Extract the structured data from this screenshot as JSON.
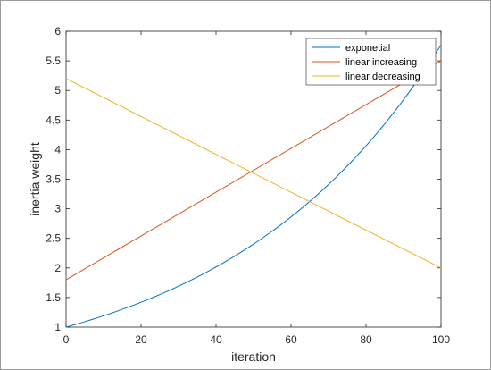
{
  "chart_data": {
    "type": "line",
    "title": "",
    "xlabel": "iteration",
    "ylabel": "inertia weight",
    "xlim": [
      0,
      100
    ],
    "ylim": [
      1,
      6
    ],
    "xticks": [
      0,
      20,
      40,
      60,
      80,
      100
    ],
    "yticks": [
      1,
      1.5,
      2,
      2.5,
      3,
      3.5,
      4,
      4.5,
      5,
      5.5,
      6
    ],
    "ytick_labels": [
      "1",
      "1.5",
      "2",
      "2.5",
      "3",
      "3.5",
      "4",
      "4.5",
      "5",
      "5.5",
      "6"
    ],
    "grid": false,
    "legend_position": "top-right",
    "series": [
      {
        "name": "exponetial",
        "color": "#0072BD",
        "x": [
          0,
          10,
          20,
          30,
          40,
          50,
          60,
          65,
          70,
          80,
          90,
          100
        ],
        "y": [
          1.0,
          1.19,
          1.42,
          1.69,
          2.01,
          2.4,
          2.86,
          3.12,
          3.41,
          4.06,
          4.84,
          5.77
        ]
      },
      {
        "name": "linear increasing",
        "color": "#D95319",
        "x": [
          0,
          100
        ],
        "y": [
          1.8,
          5.5
        ]
      },
      {
        "name": "linear decreasing",
        "color": "#EDB120",
        "x": [
          0,
          100
        ],
        "y": [
          5.2,
          2.0
        ]
      }
    ]
  }
}
